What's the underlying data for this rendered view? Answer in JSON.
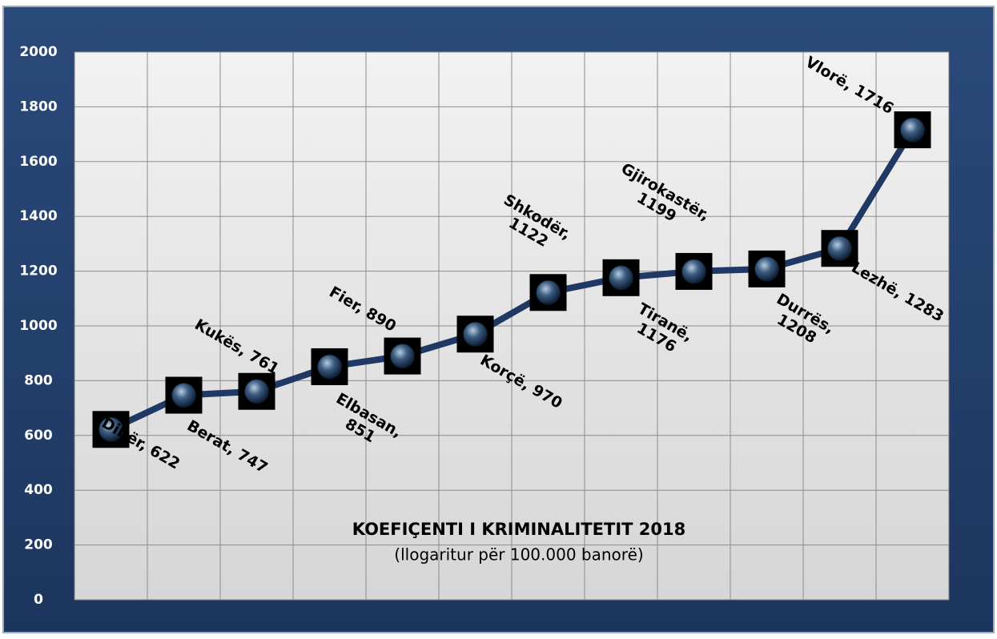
{
  "chart_data": {
    "type": "line",
    "title": "KOEFIÇENTI I KRIMINALITETIT 2018",
    "subtitle": "(llogaritur për 100.000  banorë)",
    "values": [
      622,
      747,
      761,
      851,
      890,
      970,
      1122,
      1176,
      1199,
      1208,
      1283,
      1716
    ],
    "value_labels": [
      "Dibër, 622",
      "Berat, 747",
      "Kukës, 761",
      "Elbasan, 851",
      "Fier, 890",
      "Korçë, 970",
      "Shkodër, 1122",
      "Tiranë, 1176",
      "Gjirokastër, 1199",
      "Durrës, 1208",
      "Lezhë, 1283",
      "Vlorë, 1716"
    ],
    "color": "#1f3864",
    "ylim": [
      0,
      2000
    ],
    "yticks": [
      0,
      200,
      400,
      600,
      800,
      1000,
      1200,
      1400,
      1600,
      1800,
      2000
    ],
    "grid": true
  }
}
